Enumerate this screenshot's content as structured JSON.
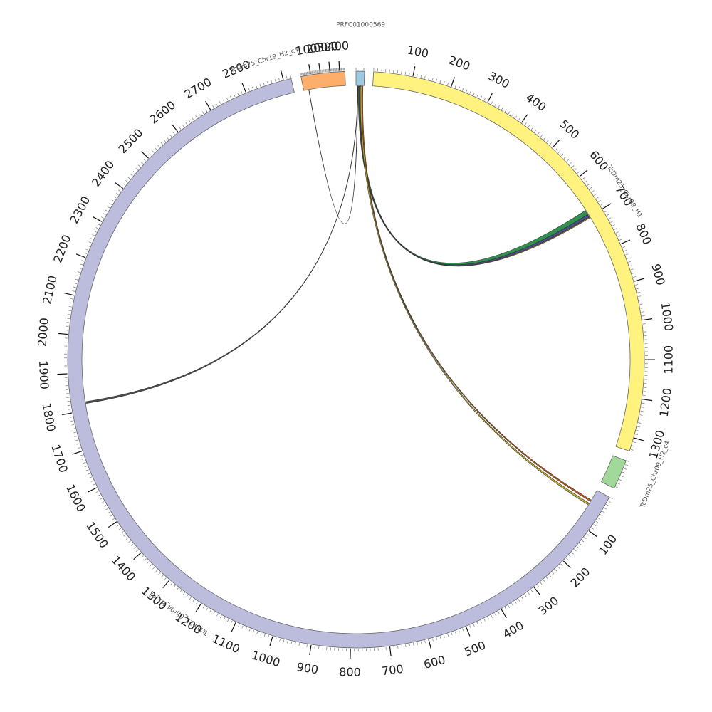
{
  "chart_data": {
    "type": "chord",
    "segments": [
      {
        "id": "prfc",
        "name": "PRFC01000569",
        "color": "#9ecae1",
        "length": 22,
        "tick_labels": []
      },
      {
        "id": "chr09_h1",
        "name": "TcDm25_Chr09_H1",
        "color": "#fff27f",
        "length": 1335,
        "tick_labels": [
          "100",
          "200",
          "300",
          "400",
          "500",
          "600",
          "700",
          "800",
          "900",
          "1000",
          "1100",
          "1200",
          "1300"
        ]
      },
      {
        "id": "chr09_h2_c4",
        "name": "TcDm25_Chr09_H2_c4",
        "color": "#a1d99b",
        "length": 75,
        "tick_labels": []
      },
      {
        "id": "chr04_h1_c1",
        "name": "TcDm25_Chr04_H1_c1",
        "color": "#bcbddc",
        "length": 2920,
        "tick_labels": [
          "100",
          "200",
          "300",
          "400",
          "500",
          "600",
          "700",
          "800",
          "900",
          "1000",
          "1100",
          "1200",
          "1300",
          "1400",
          "1500",
          "1600",
          "1700",
          "1800",
          "1900",
          "2000",
          "2100",
          "2200",
          "2300",
          "2400",
          "2500",
          "2600",
          "2700",
          "2800"
        ]
      },
      {
        "id": "chr19_h2_c4",
        "name": "TcDm25_Chr19_H2_c4",
        "color": "#fdae6b",
        "length": 455,
        "tick_labels": [
          "100",
          "200",
          "300",
          "400"
        ]
      }
    ],
    "links": [
      {
        "from": "prfc",
        "to": "chr09_h1",
        "from_pos": [
          10,
          14
        ],
        "to_pos": [
          680,
          692
        ],
        "color": "#238b45"
      },
      {
        "from": "prfc",
        "to": "chr09_h1",
        "from_pos": [
          8,
          10
        ],
        "to_pos": [
          693,
          699
        ],
        "color": "#3f4a8a"
      },
      {
        "from": "prfc",
        "to": "chr09_h1",
        "from_pos": [
          6,
          8
        ],
        "to_pos": [
          700,
          703
        ],
        "color": "#8c6d31"
      },
      {
        "from": "prfc",
        "to": "chr04_h1_c1",
        "from_pos": [
          16,
          19
        ],
        "to_pos": [
          30,
          34
        ],
        "color": "#cc4c02"
      },
      {
        "from": "prfc",
        "to": "chr04_h1_c1",
        "from_pos": [
          12,
          16
        ],
        "to_pos": [
          40,
          45
        ],
        "color": "#bdb029"
      },
      {
        "from": "prfc",
        "to": "chr04_h1_c1",
        "from_pos": [
          5,
          6
        ],
        "to_pos": [
          1818,
          1823
        ],
        "color": "#444444"
      },
      {
        "from": "prfc",
        "to": "chr19_h2_c4",
        "from_pos": [
          4,
          5
        ],
        "to_pos": [
          55,
          58
        ],
        "color": "#6e1a1a"
      }
    ]
  }
}
